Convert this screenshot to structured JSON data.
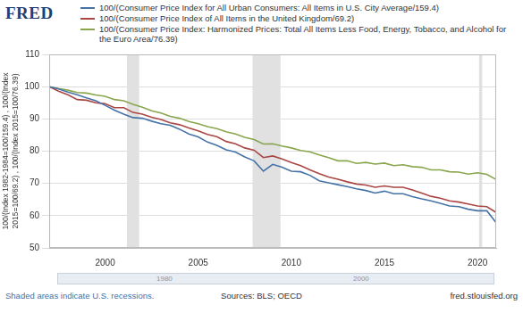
{
  "chart_data": {
    "type": "line",
    "logo": "FRED",
    "y_label": [
      "100/(Index 1982-1984=100/159.4) , 100/(Index",
      "2015=100/69.2) , 100/(Index 2015=100/76.39)"
    ],
    "x": [
      1997,
      1997.5,
      1998,
      1998.5,
      1999,
      1999.5,
      2000,
      2000.5,
      2001,
      2001.5,
      2002,
      2002.5,
      2003,
      2003.5,
      2004,
      2004.5,
      2005,
      2005.5,
      2006,
      2006.5,
      2007,
      2007.5,
      2008,
      2008.5,
      2009,
      2009.5,
      2010,
      2010.5,
      2011,
      2011.5,
      2012,
      2012.5,
      2013,
      2013.5,
      2014,
      2014.5,
      2015,
      2015.5,
      2016,
      2016.5,
      2017,
      2017.5,
      2018,
      2018.5,
      2019,
      2019.5,
      2020,
      2020.5,
      2021
    ],
    "series": [
      {
        "name": "100/(Consumer Price Index for All Urban Consumers: All Items in U.S. City Average/159.4)",
        "color": "#4572a7",
        "values": [
          100,
          99.3,
          98.3,
          97.5,
          96.5,
          95.6,
          94.2,
          92.7,
          91.5,
          90.4,
          90.2,
          89.3,
          88.5,
          88.0,
          86.8,
          85.3,
          84.4,
          82.8,
          81.8,
          80.4,
          79.7,
          78.2,
          77.0,
          73.8,
          75.9,
          75.0,
          73.8,
          73.6,
          72.5,
          70.8,
          70.2,
          69.6,
          69.0,
          68.3,
          67.8,
          67.0,
          67.6,
          66.8,
          66.8,
          65.9,
          65.2,
          64.6,
          63.8,
          63.0,
          62.8,
          62.0,
          61.5,
          61.5,
          57.8
        ]
      },
      {
        "name": "100/(Consumer Price Index of All Items in the United Kingdom/69.2)",
        "color": "#aa4643",
        "values": [
          100,
          98.6,
          97.5,
          96.0,
          95.8,
          95.0,
          94.7,
          93.5,
          93.5,
          92.0,
          91.5,
          90.5,
          89.8,
          88.8,
          88.2,
          87.2,
          86.3,
          85.2,
          84.5,
          83.0,
          82.3,
          81.0,
          80.3,
          78.0,
          78.5,
          77.6,
          76.5,
          75.5,
          74.2,
          73.0,
          72.0,
          71.3,
          70.5,
          69.8,
          69.5,
          68.8,
          69.2,
          68.8,
          68.8,
          68.0,
          67.0,
          66.0,
          65.4,
          64.6,
          64.2,
          63.6,
          63.0,
          62.8,
          61.0
        ]
      },
      {
        "name": "100/(Consumer Price Index: Harmonized Prices: Total All Items Less Food, Energy, Tobacco, and Alcohol for the Euro Area/76.39)",
        "color": "#89a54e",
        "values": [
          100,
          99.4,
          98.9,
          98.2,
          98.0,
          97.4,
          97.0,
          96.0,
          95.6,
          94.5,
          93.6,
          92.5,
          91.8,
          90.8,
          90.2,
          89.2,
          88.5,
          87.6,
          87.0,
          86.0,
          85.3,
          84.3,
          83.6,
          82.2,
          82.3,
          81.6,
          81.0,
          80.2,
          79.8,
          78.8,
          78.0,
          77.0,
          77.0,
          76.2,
          76.5,
          76.0,
          76.3,
          75.5,
          75.8,
          75.2,
          75.0,
          74.2,
          74.2,
          73.6,
          73.5,
          72.9,
          73.3,
          72.8,
          71.2
        ]
      }
    ],
    "recessions": [
      [
        2001.17,
        2001.83
      ],
      [
        2007.92,
        2009.42
      ],
      [
        2020.08,
        2020.25
      ]
    ],
    "xlim": [
      1997,
      2021
    ],
    "xticks": [
      2000,
      2005,
      2010,
      2015,
      2020
    ],
    "ylim": [
      50,
      110
    ],
    "yticks": [
      50,
      60,
      70,
      80,
      90,
      100,
      110
    ],
    "grid": true,
    "legend": "top",
    "marker": "none",
    "line_style": "solid",
    "navigator_labels": [
      "1980",
      "2000"
    ],
    "footer": {
      "left": "Shaded areas indicate U.S. recessions.",
      "center": "Sources: BLS; OECD",
      "right": "fred.stlouisfed.org"
    }
  }
}
